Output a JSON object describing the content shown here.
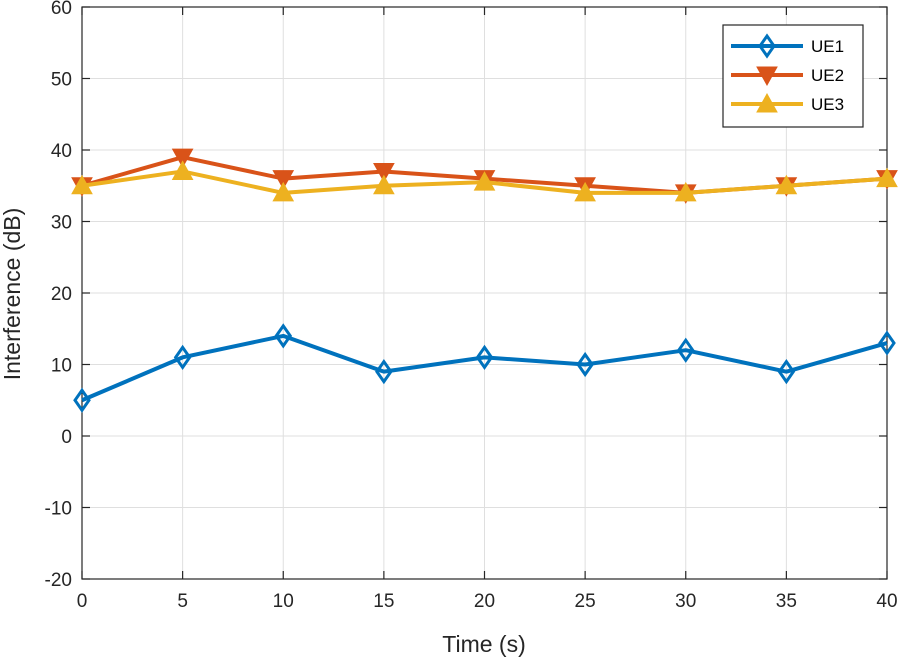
{
  "chart_data": {
    "type": "line",
    "title": "",
    "xlabel": "Time (s)",
    "ylabel": "Interference (dB)",
    "xlim": [
      0,
      40
    ],
    "ylim": [
      -20,
      60
    ],
    "xticks": [
      0,
      5,
      10,
      15,
      20,
      25,
      30,
      35,
      40
    ],
    "yticks": [
      -20,
      -10,
      0,
      10,
      20,
      30,
      40,
      50,
      60
    ],
    "grid": true,
    "legend_position": "top-right",
    "x": [
      0,
      5,
      10,
      15,
      20,
      25,
      30,
      35,
      40
    ],
    "series": [
      {
        "name": "UE1",
        "color": "#0072BD",
        "marker": "diamond",
        "values": [
          5,
          11,
          14,
          9,
          11,
          10,
          12,
          9,
          13
        ]
      },
      {
        "name": "UE2",
        "color": "#D95319",
        "marker": "triangle-down",
        "values": [
          35,
          39,
          36,
          37,
          36,
          35,
          34,
          35,
          36
        ]
      },
      {
        "name": "UE3",
        "color": "#EDB120",
        "marker": "triangle-up",
        "values": [
          35,
          37,
          34,
          35,
          35.5,
          34,
          34,
          35,
          36
        ]
      }
    ]
  }
}
